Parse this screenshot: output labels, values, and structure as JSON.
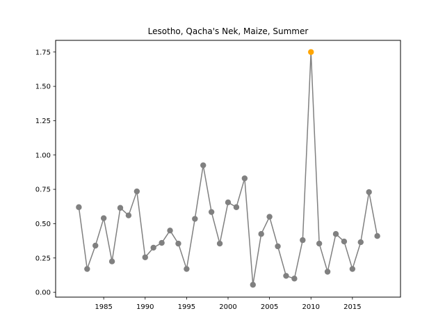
{
  "chart_data": {
    "type": "line",
    "title": "Lesotho, Qacha's Nek, Maize, Summer",
    "xlabel": "",
    "ylabel": "",
    "xlim": [
      1979.2,
      2020.8
    ],
    "ylim": [
      -0.035,
      1.835
    ],
    "x_ticks": [
      1985,
      1990,
      1995,
      2000,
      2005,
      2010,
      2015
    ],
    "y_ticks": [
      0.0,
      0.25,
      0.5,
      0.75,
      1.0,
      1.25,
      1.5,
      1.75
    ],
    "y_tick_labels": [
      "0.00",
      "0.25",
      "0.50",
      "0.75",
      "1.00",
      "1.25",
      "1.50",
      "1.75"
    ],
    "grid": false,
    "line_color": "#808080",
    "marker_color": "#808080",
    "highlight_color": "#ffa500",
    "highlight_x": 2010,
    "x": [
      1982,
      1983,
      1984,
      1985,
      1986,
      1987,
      1988,
      1989,
      1990,
      1991,
      1992,
      1993,
      1994,
      1995,
      1996,
      1997,
      1998,
      1999,
      2000,
      2001,
      2002,
      2003,
      2004,
      2005,
      2006,
      2007,
      2008,
      2009,
      2010,
      2011,
      2012,
      2013,
      2014,
      2015,
      2016,
      2017,
      2018
    ],
    "y": [
      0.62,
      0.17,
      0.34,
      0.54,
      0.225,
      0.615,
      0.56,
      0.735,
      0.255,
      0.325,
      0.36,
      0.45,
      0.355,
      0.17,
      0.535,
      0.925,
      0.585,
      0.355,
      0.655,
      0.62,
      0.83,
      0.055,
      0.425,
      0.55,
      0.335,
      0.12,
      0.1,
      0.38,
      1.75,
      0.355,
      0.15,
      0.425,
      0.37,
      0.17,
      0.365,
      0.73,
      0.41
    ]
  }
}
